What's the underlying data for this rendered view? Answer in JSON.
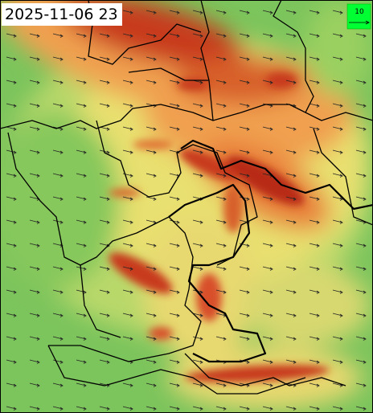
{
  "header": {
    "timestamp": "2025-11-06 23"
  },
  "legend": {
    "label": "10"
  }
}
